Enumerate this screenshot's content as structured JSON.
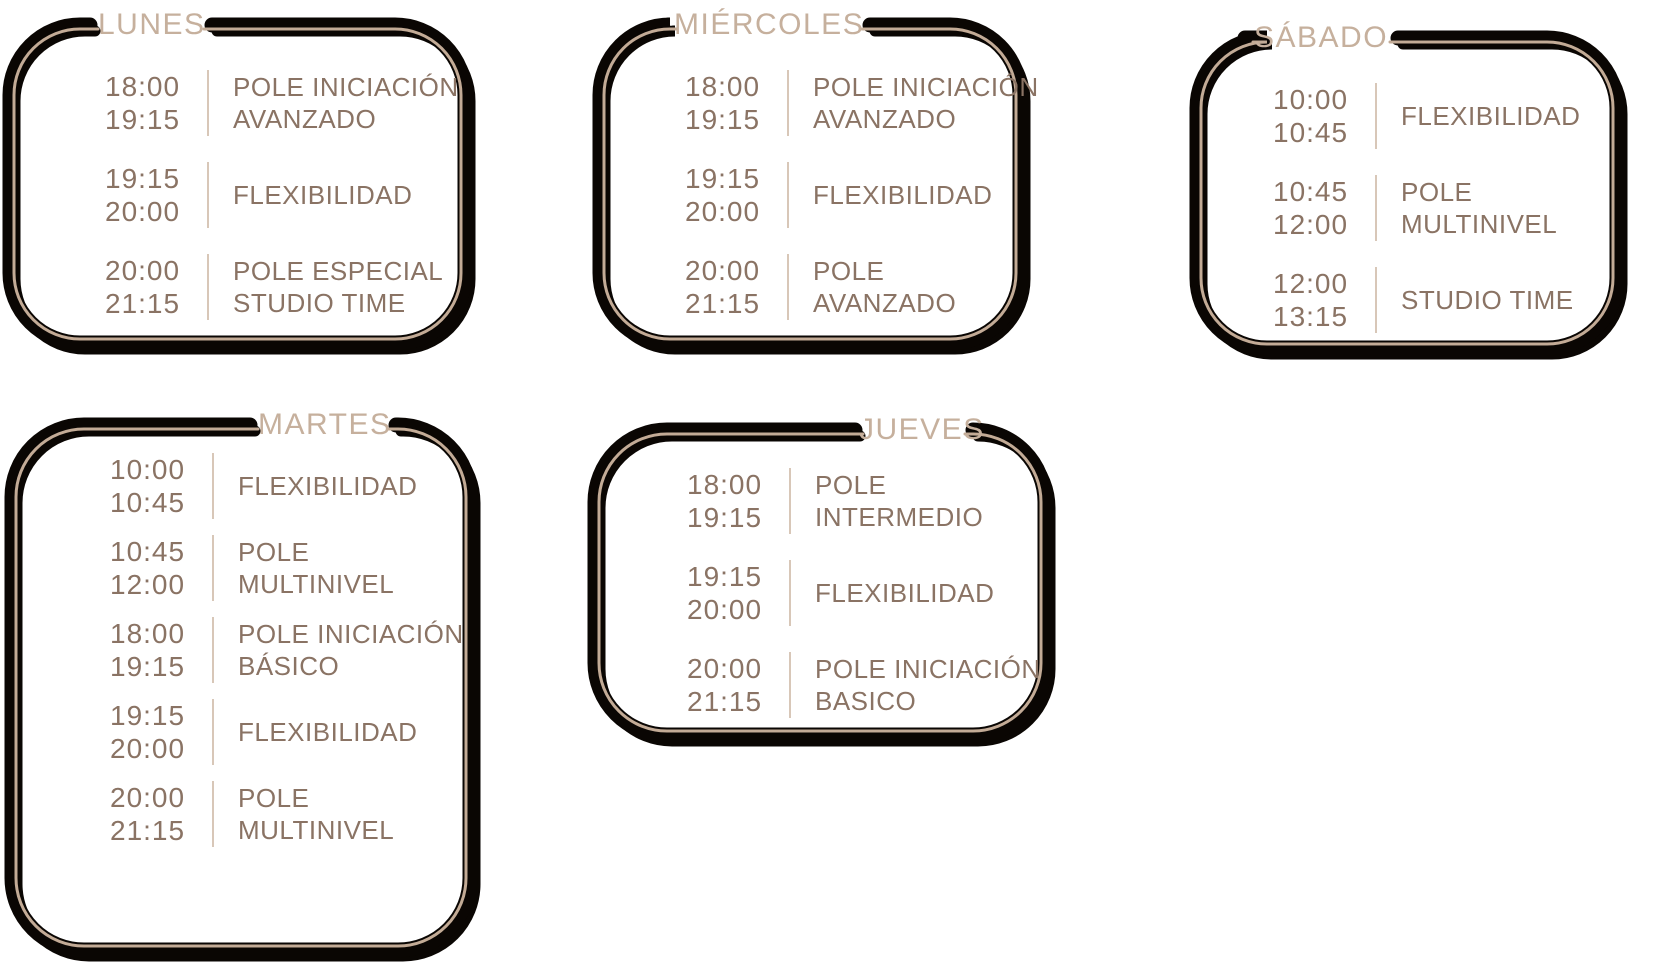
{
  "colors": {
    "frame_black": "#0a0603",
    "frame_line": "#c3ab96",
    "title_tan": "#c6b09d",
    "text_brown": "#8a7364",
    "divider_tan": "#d8c7b8",
    "background": "#ffffff"
  },
  "cards": [
    {
      "id": "lunes",
      "title": "LUNES",
      "sessions": [
        {
          "times": [
            "18:00",
            "19:15"
          ],
          "lines": [
            "POLE INICIACIÓN",
            "AVANZADO"
          ]
        },
        {
          "times": [
            "19:15",
            "20:00"
          ],
          "lines": [
            "FLEXIBILIDAD"
          ]
        },
        {
          "times": [
            "20:00",
            "21:15"
          ],
          "lines": [
            "POLE ESPECIAL",
            "STUDIO TIME"
          ]
        }
      ]
    },
    {
      "id": "miercoles",
      "title": "MIÉRCOLES",
      "sessions": [
        {
          "times": [
            "18:00",
            "19:15"
          ],
          "lines": [
            "POLE INICIACIÓN",
            "AVANZADO"
          ]
        },
        {
          "times": [
            "19:15",
            "20:00"
          ],
          "lines": [
            "FLEXIBILIDAD"
          ]
        },
        {
          "times": [
            "20:00",
            "21:15"
          ],
          "lines": [
            "POLE",
            "AVANZADO"
          ]
        }
      ]
    },
    {
      "id": "sabado",
      "title": "SÁBADO",
      "sessions": [
        {
          "times": [
            "10:00",
            "10:45"
          ],
          "lines": [
            "FLEXIBILIDAD"
          ]
        },
        {
          "times": [
            "10:45",
            "12:00"
          ],
          "lines": [
            "POLE",
            "MULTINIVEL"
          ]
        },
        {
          "times": [
            "12:00",
            "13:15"
          ],
          "lines": [
            "STUDIO TIME"
          ]
        }
      ]
    },
    {
      "id": "martes",
      "title": "MARTES",
      "sessions": [
        {
          "times": [
            "10:00",
            "10:45"
          ],
          "lines": [
            "FLEXIBILIDAD"
          ]
        },
        {
          "times": [
            "10:45",
            "12:00"
          ],
          "lines": [
            "POLE",
            "MULTINIVEL"
          ]
        },
        {
          "times": [
            "18:00",
            "19:15"
          ],
          "lines": [
            "POLE INICIACIÓN",
            "BÁSICO"
          ]
        },
        {
          "times": [
            "19:15",
            "20:00"
          ],
          "lines": [
            "FLEXIBILIDAD"
          ]
        },
        {
          "times": [
            "20:00",
            "21:15"
          ],
          "lines": [
            "POLE",
            "MULTINIVEL"
          ]
        }
      ]
    },
    {
      "id": "jueves",
      "title": "JUEVES",
      "sessions": [
        {
          "times": [
            "18:00",
            "19:15"
          ],
          "lines": [
            "POLE",
            "INTERMEDIO"
          ]
        },
        {
          "times": [
            "19:15",
            "20:00"
          ],
          "lines": [
            "FLEXIBILIDAD"
          ]
        },
        {
          "times": [
            "20:00",
            "21:15"
          ],
          "lines": [
            "POLE INICIACIÓN",
            "BASICO"
          ]
        }
      ]
    }
  ]
}
